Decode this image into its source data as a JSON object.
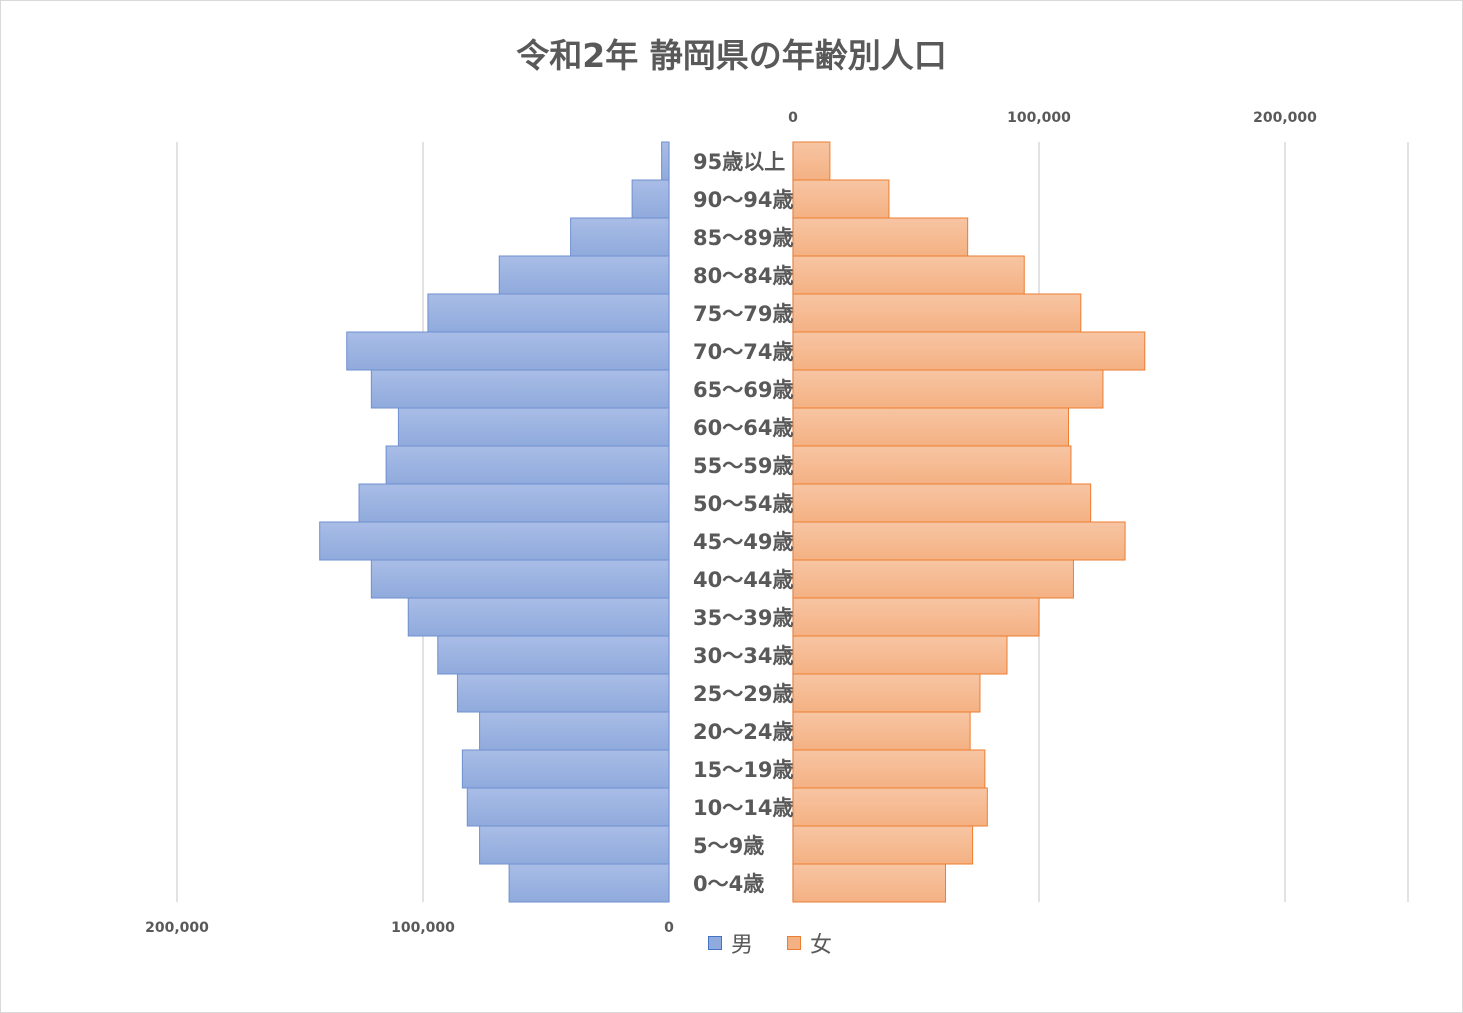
{
  "chart_data": {
    "type": "bar",
    "orientation": "horizontal",
    "layout": "population-pyramid",
    "title": "令和2年 静岡県の年齢別人口",
    "categories": [
      "0〜4歳",
      "5〜9歳",
      "10〜14歳",
      "15〜19歳",
      "20〜24歳",
      "25〜29歳",
      "30〜34歳",
      "35〜39歳",
      "40〜44歳",
      "45〜49歳",
      "50〜54歳",
      "55〜59歳",
      "60〜64歳",
      "65〜69歳",
      "70〜74歳",
      "75〜79歳",
      "80〜84歳",
      "85〜89歳",
      "90〜94歳",
      "95歳以上"
    ],
    "series": [
      {
        "name": "男",
        "color": "#8faadc",
        "values": [
          65000,
          77000,
          82000,
          84000,
          77000,
          86000,
          94000,
          106000,
          121000,
          142000,
          126000,
          115000,
          110000,
          121000,
          131000,
          98000,
          69000,
          40000,
          15000,
          3000
        ]
      },
      {
        "name": "女",
        "color": "#f4b183",
        "values": [
          62000,
          73000,
          79000,
          78000,
          72000,
          76000,
          87000,
          100000,
          114000,
          135000,
          121000,
          113000,
          112000,
          126000,
          143000,
          117000,
          94000,
          71000,
          39000,
          15000
        ]
      }
    ],
    "male_axis": {
      "ticks": [
        "200,000",
        "100,000",
        "0"
      ],
      "ticks_values": [
        200000,
        100000,
        0
      ],
      "range": [
        0,
        200000
      ],
      "direction": "reversed"
    },
    "female_axis": {
      "ticks": [
        "0",
        "100,000",
        "200,000"
      ],
      "ticks_values": [
        0,
        100000,
        200000
      ],
      "range": [
        0,
        250000
      ]
    },
    "gridlines": true,
    "legend": {
      "position": "bottom",
      "items": [
        "男",
        "女"
      ]
    }
  }
}
